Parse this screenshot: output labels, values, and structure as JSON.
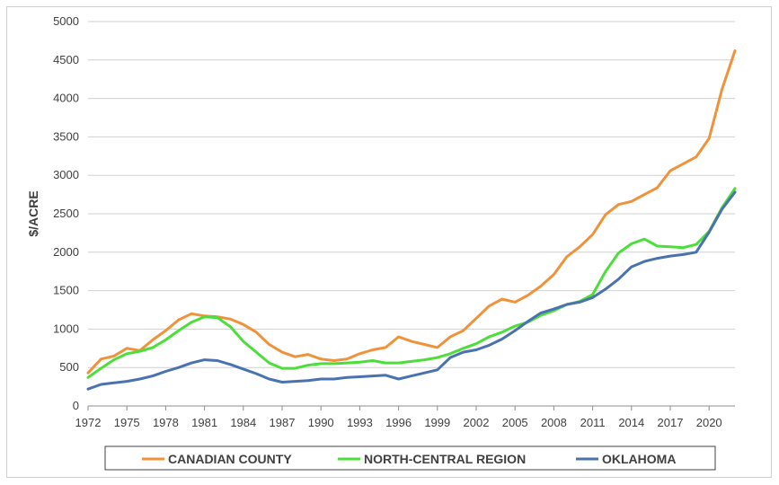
{
  "chart_data": {
    "type": "line",
    "title": "",
    "xlabel": "",
    "ylabel": "$/ACRE",
    "xlim": [
      1972,
      2022
    ],
    "ylim": [
      0,
      5000
    ],
    "yticks": [
      0,
      500,
      1000,
      1500,
      2000,
      2500,
      3000,
      3500,
      4000,
      4500,
      5000
    ],
    "xticks": [
      1972,
      1975,
      1978,
      1981,
      1984,
      1987,
      1990,
      1993,
      1996,
      1999,
      2002,
      2005,
      2008,
      2011,
      2014,
      2017,
      2020
    ],
    "grid": "horizontal",
    "legend_position": "bottom",
    "x": [
      1972,
      1973,
      1974,
      1975,
      1976,
      1977,
      1978,
      1979,
      1980,
      1981,
      1982,
      1983,
      1984,
      1985,
      1986,
      1987,
      1988,
      1989,
      1990,
      1991,
      1992,
      1993,
      1994,
      1995,
      1996,
      1997,
      1998,
      1999,
      2000,
      2001,
      2002,
      2003,
      2004,
      2005,
      2006,
      2007,
      2008,
      2009,
      2010,
      2011,
      2012,
      2013,
      2014,
      2015,
      2016,
      2017,
      2018,
      2019,
      2020,
      2021,
      2022
    ],
    "series": [
      {
        "name": "CANADIAN COUNTY",
        "color": "#f0923a",
        "values": [
          430,
          610,
          650,
          750,
          720,
          860,
          980,
          1120,
          1200,
          1170,
          1160,
          1130,
          1060,
          960,
          800,
          700,
          640,
          670,
          610,
          590,
          610,
          680,
          730,
          760,
          900,
          840,
          800,
          760,
          900,
          980,
          1140,
          1300,
          1390,
          1350,
          1440,
          1560,
          1710,
          1940,
          2070,
          2230,
          2490,
          2620,
          2660,
          2750,
          2840,
          3060,
          3150,
          3240,
          3480,
          4120,
          4620
        ]
      },
      {
        "name": "NORTH-CENTRAL REGION",
        "color": "#4cde3a",
        "values": [
          370,
          490,
          600,
          680,
          710,
          760,
          860,
          980,
          1090,
          1160,
          1150,
          1030,
          840,
          700,
          560,
          490,
          490,
          530,
          550,
          550,
          560,
          570,
          590,
          560,
          560,
          580,
          600,
          630,
          680,
          750,
          810,
          900,
          960,
          1040,
          1090,
          1180,
          1240,
          1320,
          1360,
          1450,
          1750,
          1990,
          2110,
          2170,
          2080,
          2070,
          2060,
          2100,
          2270,
          2580,
          2830
        ]
      },
      {
        "name": "OKLAHOMA",
        "color": "#4a72b0",
        "values": [
          220,
          280,
          300,
          320,
          350,
          390,
          450,
          500,
          560,
          600,
          590,
          540,
          480,
          420,
          350,
          310,
          320,
          330,
          350,
          350,
          370,
          380,
          390,
          400,
          350,
          390,
          430,
          470,
          630,
          700,
          730,
          790,
          870,
          980,
          1100,
          1210,
          1260,
          1320,
          1350,
          1410,
          1520,
          1650,
          1810,
          1880,
          1920,
          1950,
          1970,
          2000,
          2260,
          2560,
          2780
        ]
      }
    ]
  }
}
